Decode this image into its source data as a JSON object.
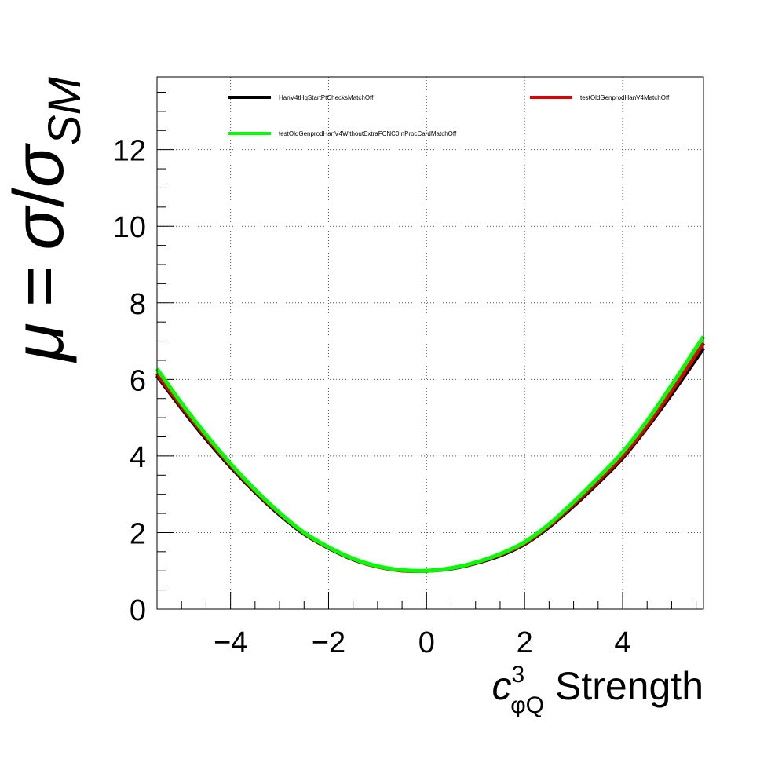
{
  "chart_data": {
    "type": "line",
    "title": "",
    "xlabel": {
      "symbol": "c",
      "superscript": "3",
      "subscript": "φQ",
      "text": "Strength"
    },
    "ylabel": {
      "mu": "μ",
      "equals": "=",
      "sigma": "σ",
      "slash": "/",
      "sigma2": "σ",
      "subscript": "SM"
    },
    "xlim": [
      -5.5,
      5.65
    ],
    "ylim": [
      0,
      13.9
    ],
    "x_ticks": [
      -4,
      -2,
      0,
      2,
      4
    ],
    "x_tick_labels": [
      "−4",
      "−2",
      "0",
      "2",
      "4"
    ],
    "y_ticks": [
      0,
      2,
      4,
      6,
      8,
      10,
      12
    ],
    "y_tick_labels": [
      "0",
      "2",
      "4",
      "6",
      "8",
      "10",
      "12"
    ],
    "grid": true,
    "legend_position": "top",
    "series": [
      {
        "name": "HanV4tHqStartPtChecksMatchOff",
        "color": "#000000",
        "x": [
          -5.5,
          -5,
          -4.5,
          -4,
          -3.5,
          -3,
          -2.5,
          -2,
          -1.5,
          -1,
          -0.5,
          0,
          0.5,
          1,
          1.5,
          2,
          2.5,
          3,
          3.5,
          4,
          4.5,
          5,
          5.65
        ],
        "values": [
          6.1,
          5.25,
          4.45,
          3.72,
          3.06,
          2.47,
          1.97,
          1.6,
          1.3,
          1.11,
          1.01,
          1.0,
          1.06,
          1.2,
          1.4,
          1.7,
          2.15,
          2.7,
          3.3,
          3.95,
          4.75,
          5.62,
          6.82
        ]
      },
      {
        "name": "testOldGenprodHanV4MatchOff",
        "color": "#e00000",
        "x": [
          -5.5,
          -5,
          -4.5,
          -4,
          -3.5,
          -3,
          -2.5,
          -2,
          -1.5,
          -1,
          -0.5,
          0,
          0.5,
          1,
          1.5,
          2,
          2.5,
          3,
          3.5,
          4,
          4.5,
          5,
          5.65
        ],
        "values": [
          6.15,
          5.3,
          4.5,
          3.76,
          3.09,
          2.5,
          1.99,
          1.61,
          1.31,
          1.11,
          1.01,
          1.0,
          1.07,
          1.21,
          1.42,
          1.72,
          2.18,
          2.74,
          3.35,
          4.0,
          4.8,
          5.7,
          6.95
        ]
      },
      {
        "name": "testOldGenprodHanV4WithoutExtraFCNC0InProcCardMatchOff",
        "color": "#00ff00",
        "x": [
          -5.5,
          -5,
          -4.5,
          -4,
          -3.5,
          -3,
          -2.5,
          -2,
          -1.5,
          -1,
          -0.5,
          0,
          0.5,
          1,
          1.5,
          2,
          2.5,
          3,
          3.5,
          4,
          4.5,
          5,
          5.65
        ],
        "values": [
          6.28,
          5.38,
          4.56,
          3.8,
          3.12,
          2.52,
          2.0,
          1.62,
          1.32,
          1.12,
          1.02,
          1.0,
          1.07,
          1.22,
          1.44,
          1.75,
          2.22,
          2.8,
          3.43,
          4.1,
          4.92,
          5.85,
          7.12
        ]
      }
    ]
  }
}
